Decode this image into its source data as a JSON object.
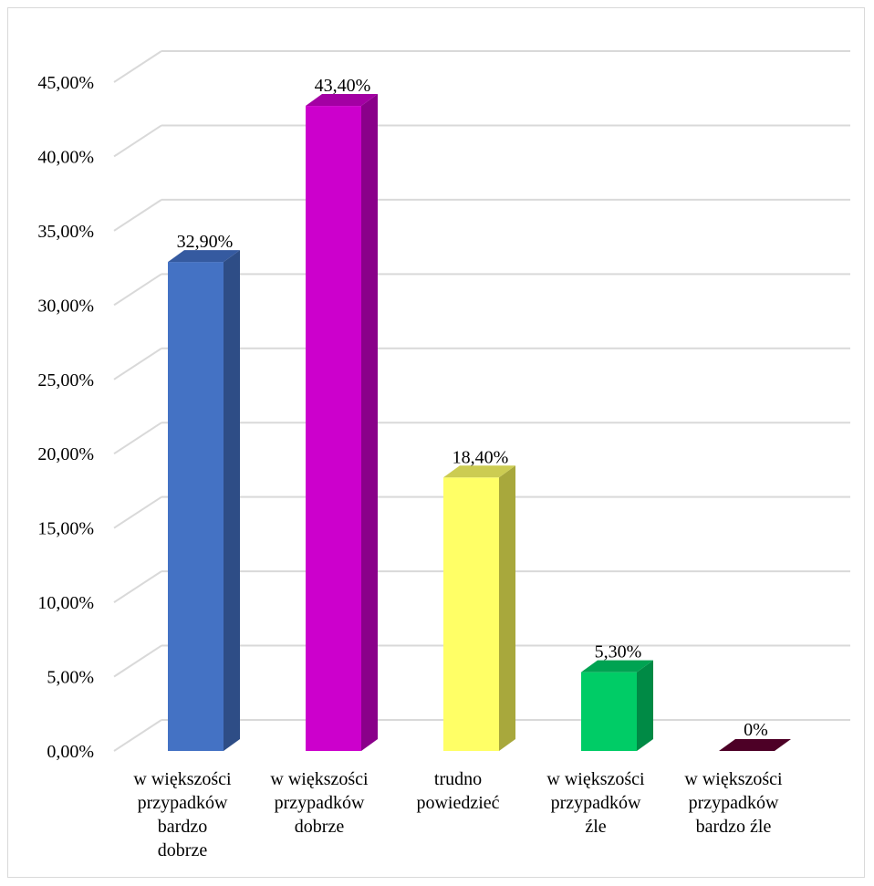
{
  "chart_data": {
    "type": "bar",
    "title": "",
    "xlabel": "",
    "ylabel": "",
    "ylim": [
      0,
      45
    ],
    "grid": true,
    "y_ticks": [
      "0,00%",
      "5,00%",
      "10,00%",
      "15,00%",
      "20,00%",
      "25,00%",
      "30,00%",
      "35,00%",
      "40,00%",
      "45,00%"
    ],
    "categories": [
      [
        "w większości",
        "przypadków",
        "bardzo",
        "dobrze"
      ],
      [
        "w większości",
        "przypadków",
        "dobrze"
      ],
      [
        "trudno",
        "powiedzieć"
      ],
      [
        "w większości",
        "przypadków",
        "źle"
      ],
      [
        "w większości",
        "przypadków",
        "bardzo źle"
      ]
    ],
    "values": [
      32.9,
      43.4,
      18.4,
      5.3,
      0
    ],
    "data_labels": [
      "32,90%",
      "43,40%",
      "18,40%",
      "5,30%",
      "0%"
    ],
    "colors": [
      {
        "front": "#4472c4",
        "side": "#2e4d86",
        "top": "#355aa0"
      },
      {
        "front": "#cc00cc",
        "side": "#8a008a",
        "top": "#a300a3"
      },
      {
        "front": "#ffff66",
        "side": "#a8a83c",
        "top": "#cccc52"
      },
      {
        "front": "#00cc66",
        "side": "#008a45",
        "top": "#00a352"
      },
      {
        "front": "#4d0026",
        "side": "#330019",
        "top": "#4d0026"
      }
    ],
    "gridline_color": "#d9d9d9"
  }
}
